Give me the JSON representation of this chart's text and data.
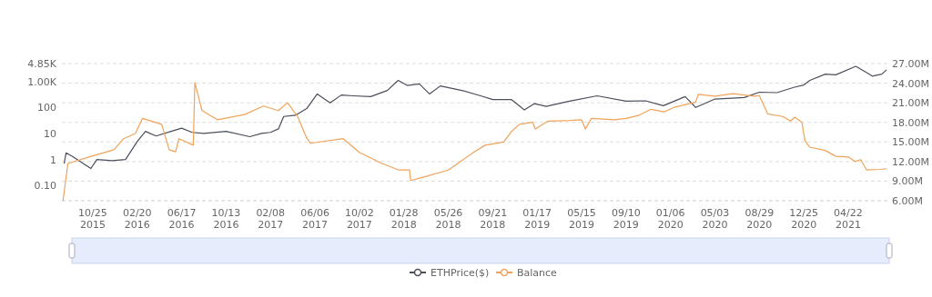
{
  "chart_data": {
    "type": "line",
    "log": "y",
    "grid": true,
    "legend": "bottom",
    "xlim": [
      "2015-08-04",
      "2021-08-04"
    ],
    "xticks": [
      {
        "value": "2015-10-25",
        "label": "10/25\n2015"
      },
      {
        "value": "2016-02-20",
        "label": "02/20\n2016"
      },
      {
        "value": "2016-06-17",
        "label": "06/17\n2016"
      },
      {
        "value": "2016-10-13",
        "label": "10/13\n2016"
      },
      {
        "value": "2017-02-08",
        "label": "02/08\n2017"
      },
      {
        "value": "2017-06-06",
        "label": "06/06\n2017"
      },
      {
        "value": "2017-10-02",
        "label": "10/02\n2017"
      },
      {
        "value": "2018-01-28",
        "label": "01/28\n2018"
      },
      {
        "value": "2018-05-26",
        "label": "05/26\n2018"
      },
      {
        "value": "2018-09-21",
        "label": "09/21\n2018"
      },
      {
        "value": "2019-01-17",
        "label": "01/17\n2019"
      },
      {
        "value": "2019-05-15",
        "label": "05/15\n2019"
      },
      {
        "value": "2019-09-10",
        "label": "09/10\n2019"
      },
      {
        "value": "2020-01-06",
        "label": "01/06\n2020"
      },
      {
        "value": "2020-05-03",
        "label": "05/03\n2020"
      },
      {
        "value": "2020-08-29",
        "label": "08/29\n2020"
      },
      {
        "value": "2020-12-25",
        "label": "12/25\n2020"
      },
      {
        "value": "2021-04-22",
        "label": "04/22\n2021"
      }
    ],
    "ylim": [
      0.026,
      4850
    ],
    "yticks": [
      {
        "value": 0.1,
        "label": "0.10"
      },
      1,
      10,
      100,
      {
        "value": 1000,
        "label": "1.00K"
      },
      {
        "value": 4850,
        "label": "4.85K"
      }
    ],
    "y2lim": [
      6000000,
      27000000
    ],
    "y2ticks": [
      {
        "value": 6000000,
        "label": "6.00M"
      },
      {
        "value": 9000000,
        "label": "9.00M"
      },
      {
        "value": 12000000,
        "label": "12.00M"
      },
      {
        "value": 15000000,
        "label": "15.00M"
      },
      {
        "value": 18000000,
        "label": "18.00M"
      },
      {
        "value": 21000000,
        "label": "21.00M"
      },
      {
        "value": 24000000,
        "label": "24.00M"
      },
      {
        "value": 27000000,
        "label": "27.00M"
      }
    ],
    "series": [
      {
        "name": "ETHPrice($)",
        "color": "#4b4f5c",
        "x": [
          "2015-08-10",
          "2015-08-15",
          "2015-09-01",
          "2015-10-20",
          "2015-11-05",
          "2015-12-15",
          "2016-01-20",
          "2016-02-20",
          "2016-03-13",
          "2016-04-10",
          "2016-05-20",
          "2016-06-17",
          "2016-07-15",
          "2016-08-15",
          "2016-10-13",
          "2016-12-15",
          "2017-01-15",
          "2017-02-08",
          "2017-03-01",
          "2017-03-15",
          "2017-04-15",
          "2017-05-15",
          "2017-06-12",
          "2017-07-16",
          "2017-08-15",
          "2017-09-15",
          "2017-11-01",
          "2017-12-15",
          "2018-01-13",
          "2018-02-06",
          "2018-03-10",
          "2018-04-06",
          "2018-05-05",
          "2018-07-01",
          "2018-08-20",
          "2018-09-21",
          "2018-11-10",
          "2018-12-14",
          "2019-01-10",
          "2019-02-10",
          "2019-04-10",
          "2019-06-25",
          "2019-09-10",
          "2019-11-01",
          "2019-12-18",
          "2020-02-14",
          "2020-03-13",
          "2020-05-03",
          "2020-07-20",
          "2020-08-29",
          "2020-10-15",
          "2020-11-30",
          "2020-12-25",
          "2021-01-10",
          "2021-02-20",
          "2021-03-20",
          "2021-05-12",
          "2021-06-01",
          "2021-06-25",
          "2021-07-20",
          "2021-08-02"
        ],
        "values": [
          0.7,
          1.8,
          1.3,
          0.45,
          1.0,
          0.9,
          1.0,
          4.9,
          12,
          8,
          12,
          16,
          11,
          10,
          12,
          7.5,
          10,
          11,
          15,
          45,
          50,
          90,
          330,
          150,
          300,
          280,
          260,
          450,
          1100,
          700,
          800,
          330,
          670,
          450,
          280,
          200,
          200,
          80,
          140,
          110,
          170,
          280,
          175,
          180,
          117,
          260,
          100,
          210,
          240,
          385,
          370,
          600,
          730,
          1100,
          1900,
          1800,
          3800,
          2600,
          1600,
          1900,
          2800
        ]
      },
      {
        "name": "Balance",
        "color": "#f0a35a",
        "axis": "y2",
        "x": [
          "2015-08-07",
          "2015-08-20",
          "2015-10-15",
          "2015-12-20",
          "2016-01-15",
          "2016-02-15",
          "2016-03-05",
          "2016-04-25",
          "2016-05-15",
          "2016-06-01",
          "2016-06-10",
          "2016-07-18",
          "2016-07-22",
          "2016-08-10",
          "2016-09-20",
          "2016-12-01",
          "2017-01-20",
          "2017-03-01",
          "2017-03-25",
          "2017-04-20",
          "2017-05-15",
          "2017-05-25",
          "2017-06-06",
          "2017-08-20",
          "2017-10-02",
          "2017-12-01",
          "2018-01-15",
          "2018-02-12",
          "2018-02-15",
          "2018-03-20",
          "2018-05-26",
          "2018-08-01",
          "2018-09-01",
          "2018-10-20",
          "2018-11-10",
          "2018-12-01",
          "2019-01-05",
          "2019-01-12",
          "2019-02-15",
          "2019-04-15",
          "2019-05-15",
          "2019-05-25",
          "2019-06-10",
          "2019-08-10",
          "2019-09-10",
          "2019-10-15",
          "2019-11-15",
          "2019-12-20",
          "2020-01-15",
          "2020-03-13",
          "2020-03-20",
          "2020-05-03",
          "2020-06-20",
          "2020-08-15",
          "2020-08-29",
          "2020-09-20",
          "2020-10-30",
          "2020-11-20",
          "2020-12-01",
          "2020-12-20",
          "2020-12-28",
          "2021-01-10",
          "2021-02-20",
          "2021-03-20",
          "2021-04-22",
          "2021-05-10",
          "2021-05-25",
          "2021-06-10",
          "2021-07-15",
          "2021-08-02"
        ],
        "values": [
          6000000,
          11700000,
          12700000,
          13800000,
          15500000,
          16300000,
          18600000,
          17700000,
          13800000,
          13500000,
          15500000,
          14500000,
          24100000,
          19800000,
          18400000,
          19200000,
          20500000,
          19800000,
          21000000,
          19000000,
          15600000,
          14800000,
          14900000,
          15500000,
          13400000,
          11700000,
          10700000,
          10700000,
          9100000,
          9600000,
          10700000,
          13400000,
          14500000,
          15000000,
          16600000,
          17700000,
          18000000,
          17000000,
          18200000,
          18300000,
          18400000,
          17000000,
          18600000,
          18400000,
          18600000,
          19100000,
          20000000,
          19600000,
          20300000,
          21100000,
          22300000,
          22000000,
          22400000,
          22000000,
          22100000,
          19300000,
          18900000,
          18200000,
          18800000,
          18000000,
          15200000,
          14200000,
          13700000,
          12800000,
          12700000,
          12000000,
          12300000,
          10700000,
          10800000,
          10900000
        ]
      }
    ]
  }
}
